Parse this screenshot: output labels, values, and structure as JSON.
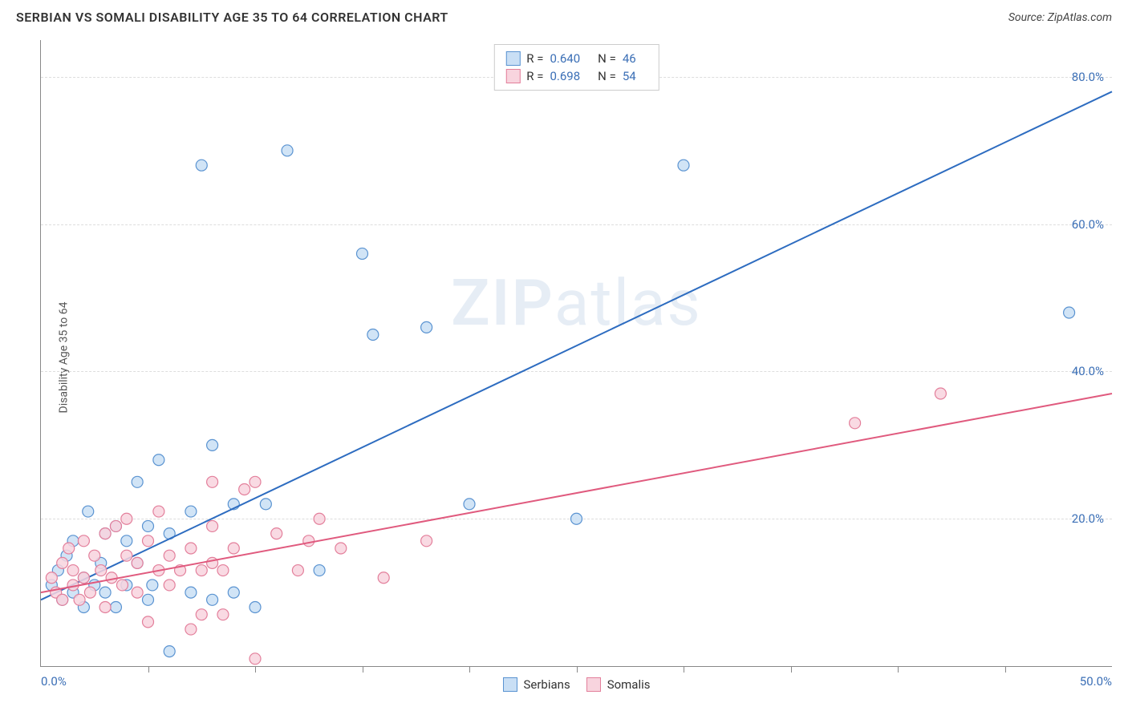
{
  "header": {
    "title": "SERBIAN VS SOMALI DISABILITY AGE 35 TO 64 CORRELATION CHART",
    "source": "Source: ZipAtlas.com"
  },
  "chart": {
    "type": "scatter",
    "ylabel": "Disability Age 35 to 64",
    "watermark": "ZIPatlas",
    "xlim": [
      0,
      50
    ],
    "ylim": [
      0,
      85
    ],
    "x_axis_label_min": "0.0%",
    "x_axis_label_max": "50.0%",
    "y_ticks": [
      {
        "v": 20,
        "label": "20.0%"
      },
      {
        "v": 40,
        "label": "40.0%"
      },
      {
        "v": 60,
        "label": "60.0%"
      },
      {
        "v": 80,
        "label": "80.0%"
      }
    ],
    "x_tick_step": 5,
    "background_color": "#ffffff",
    "grid_color": "#dddddd",
    "marker_radius": 7,
    "marker_stroke_width": 1.2,
    "line_width": 2,
    "series": [
      {
        "name": "Serbians",
        "fill": "#c9dff5",
        "stroke": "#5a93d1",
        "line_color": "#2d6cc0",
        "R": "0.640",
        "N": "46",
        "trend": {
          "x1": 0,
          "y1": 9,
          "x2": 50,
          "y2": 78
        },
        "points": [
          [
            0.5,
            11
          ],
          [
            0.8,
            13
          ],
          [
            1.0,
            9
          ],
          [
            1.2,
            15
          ],
          [
            1.5,
            10
          ],
          [
            1.5,
            17
          ],
          [
            2.0,
            8
          ],
          [
            2.0,
            12
          ],
          [
            2.2,
            21
          ],
          [
            2.5,
            11
          ],
          [
            2.8,
            14
          ],
          [
            3.0,
            10
          ],
          [
            3.0,
            18
          ],
          [
            3.5,
            8
          ],
          [
            3.5,
            19
          ],
          [
            4.0,
            11
          ],
          [
            4.0,
            17
          ],
          [
            4.5,
            14
          ],
          [
            4.5,
            25
          ],
          [
            5.0,
            9
          ],
          [
            5.0,
            19
          ],
          [
            5.2,
            11
          ],
          [
            5.5,
            28
          ],
          [
            6.0,
            2
          ],
          [
            6.0,
            18
          ],
          [
            7.0,
            10
          ],
          [
            7.0,
            21
          ],
          [
            7.5,
            68
          ],
          [
            8.0,
            9
          ],
          [
            8.0,
            30
          ],
          [
            9.0,
            10
          ],
          [
            9.0,
            22
          ],
          [
            10.0,
            8
          ],
          [
            10.5,
            22
          ],
          [
            11.5,
            70
          ],
          [
            13.0,
            13
          ],
          [
            15.0,
            56
          ],
          [
            15.5,
            45
          ],
          [
            18.0,
            46
          ],
          [
            20.0,
            22
          ],
          [
            25.0,
            20
          ],
          [
            30.0,
            68
          ],
          [
            48.0,
            48
          ]
        ]
      },
      {
        "name": "Somalis",
        "fill": "#f8d4de",
        "stroke": "#e37f9b",
        "line_color": "#e05a7e",
        "R": "0.698",
        "N": "54",
        "trend": {
          "x1": 0,
          "y1": 10,
          "x2": 50,
          "y2": 37
        },
        "points": [
          [
            0.5,
            12
          ],
          [
            0.7,
            10
          ],
          [
            1.0,
            14
          ],
          [
            1.0,
            9
          ],
          [
            1.3,
            16
          ],
          [
            1.5,
            11
          ],
          [
            1.5,
            13
          ],
          [
            1.8,
            9
          ],
          [
            2.0,
            17
          ],
          [
            2.0,
            12
          ],
          [
            2.3,
            10
          ],
          [
            2.5,
            15
          ],
          [
            2.8,
            13
          ],
          [
            3.0,
            8
          ],
          [
            3.0,
            18
          ],
          [
            3.3,
            12
          ],
          [
            3.5,
            19
          ],
          [
            3.8,
            11
          ],
          [
            4.0,
            15
          ],
          [
            4.0,
            20
          ],
          [
            4.5,
            10
          ],
          [
            4.5,
            14
          ],
          [
            5.0,
            6
          ],
          [
            5.0,
            17
          ],
          [
            5.5,
            13
          ],
          [
            5.5,
            21
          ],
          [
            6.0,
            11
          ],
          [
            6.0,
            15
          ],
          [
            6.5,
            13
          ],
          [
            7.0,
            5
          ],
          [
            7.0,
            16
          ],
          [
            7.5,
            7
          ],
          [
            7.5,
            13
          ],
          [
            8.0,
            14
          ],
          [
            8.0,
            19
          ],
          [
            8.0,
            25
          ],
          [
            8.5,
            13
          ],
          [
            8.5,
            7
          ],
          [
            9.0,
            16
          ],
          [
            9.5,
            24
          ],
          [
            10.0,
            25
          ],
          [
            10.0,
            1
          ],
          [
            11.0,
            18
          ],
          [
            12.0,
            13
          ],
          [
            12.5,
            17
          ],
          [
            13.0,
            20
          ],
          [
            14.0,
            16
          ],
          [
            16.0,
            12
          ],
          [
            18.0,
            17
          ],
          [
            38.0,
            33
          ],
          [
            42.0,
            37
          ]
        ]
      }
    ]
  },
  "legend_bottom": {
    "items": [
      "Serbians",
      "Somalis"
    ]
  }
}
